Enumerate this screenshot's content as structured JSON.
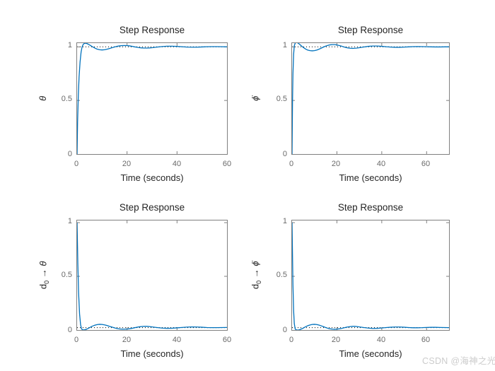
{
  "figure": {
    "background": "#ffffff"
  },
  "colors": {
    "curve": "#0072BD",
    "axis_box": "#808080",
    "tick_mark": "#808080",
    "tick_label": "#696969",
    "text": "#252525",
    "ref_line": "#000000",
    "watermark": "#cccccc"
  },
  "watermark": {
    "text": "CSDN @海神之光"
  },
  "chart_data": [
    {
      "type": "line",
      "title": "Step Response",
      "xlabel": "Time (seconds)",
      "ylabel": {
        "base": "",
        "sub": "",
        "arrow": "",
        "sym": "θ"
      },
      "xlim": [
        0,
        60
      ],
      "ylim": [
        0,
        1.035
      ],
      "xticks": [
        0,
        20,
        40,
        60
      ],
      "xtick_labels": [
        "0",
        "20",
        "40",
        "60"
      ],
      "yticks": [
        0,
        0.5,
        1
      ],
      "ytick_labels": [
        "0",
        "0.5",
        "1"
      ],
      "grid": false,
      "legend": null,
      "ref_line_y": 1,
      "series": [
        {
          "name": "theta step response",
          "color": "#0072BD",
          "x": [
            0,
            0.2,
            0.5,
            0.8,
            1.2,
            1.6,
            2.0,
            2.5,
            3,
            3.5,
            4,
            5,
            6,
            7,
            8,
            9,
            10,
            11,
            12,
            13,
            14,
            15,
            16,
            17,
            18,
            19,
            20,
            21,
            22,
            23,
            24,
            25,
            26,
            27,
            28,
            29,
            30,
            32,
            34,
            36,
            38,
            40,
            42,
            44,
            46,
            48,
            50,
            52,
            54,
            56,
            58,
            60
          ],
          "y": [
            0,
            0.3,
            0.55,
            0.72,
            0.86,
            0.95,
            1.0,
            1.025,
            1.033,
            1.034,
            1.03,
            1.018,
            1.003,
            0.99,
            0.979,
            0.973,
            0.971,
            0.973,
            0.978,
            0.985,
            0.992,
            0.999,
            1.005,
            1.009,
            1.012,
            1.013,
            1.012,
            1.009,
            1.005,
            1.0,
            0.996,
            0.992,
            0.99,
            0.989,
            0.989,
            0.99,
            0.992,
            0.998,
            1.003,
            1.006,
            1.006,
            1.004,
            1.001,
            0.998,
            0.997,
            0.997,
            0.999,
            1.001,
            1.002,
            1.002,
            1.001,
            1.0
          ]
        }
      ]
    },
    {
      "type": "line",
      "title": "Step Response",
      "xlabel": "Time (seconds)",
      "ylabel": {
        "base": "",
        "sub": "",
        "arrow": "",
        "sym": "ϕ̇"
      },
      "xlim": [
        0,
        70
      ],
      "ylim": [
        0,
        1.035
      ],
      "xticks": [
        0,
        20,
        40,
        60
      ],
      "xtick_labels": [
        "0",
        "20",
        "40",
        "60"
      ],
      "yticks": [
        0,
        0.5,
        1
      ],
      "ytick_labels": [
        "0",
        "0.5",
        "1"
      ],
      "grid": false,
      "legend": null,
      "ref_line_y": 1,
      "series": [
        {
          "name": "phidot step response",
          "color": "#0072BD",
          "x": [
            0,
            0.2,
            0.4,
            0.7,
            1.0,
            1.4,
            1.8,
            2.3,
            3,
            3.5,
            4,
            5,
            6,
            7,
            8,
            9,
            10,
            11,
            12,
            13,
            14,
            15,
            16,
            17,
            18,
            19,
            20,
            21,
            22,
            23,
            24,
            25,
            26,
            27,
            28,
            29,
            30,
            32,
            34,
            36,
            38,
            40,
            42,
            44,
            46,
            48,
            50,
            52,
            54,
            56,
            58,
            60,
            62,
            64,
            66,
            68,
            70
          ],
          "y": [
            0,
            0.48,
            0.75,
            0.93,
            1.01,
            1.035,
            1.042,
            1.04,
            1.03,
            1.022,
            1.012,
            0.995,
            0.98,
            0.97,
            0.965,
            0.963,
            0.965,
            0.97,
            0.978,
            0.988,
            0.998,
            1.007,
            1.014,
            1.019,
            1.021,
            1.021,
            1.018,
            1.013,
            1.007,
            1.0,
            0.994,
            0.99,
            0.987,
            0.986,
            0.987,
            0.989,
            0.992,
            0.999,
            1.005,
            1.008,
            1.008,
            1.005,
            1.001,
            0.998,
            0.996,
            0.996,
            0.998,
            1.0,
            1.002,
            1.003,
            1.002,
            1.001,
            1.0,
            0.999,
            0.999,
            1.0,
            1.0
          ]
        }
      ]
    },
    {
      "type": "line",
      "title": "Step Response",
      "xlabel": "Time (seconds)",
      "ylabel": {
        "base": "d",
        "sub": "0",
        "arrow": " → ",
        "sym": "θ"
      },
      "xlim": [
        0,
        60
      ],
      "ylim": [
        0,
        1.02
      ],
      "xticks": [
        0,
        20,
        40,
        60
      ],
      "xtick_labels": [
        "0",
        "20",
        "40",
        "60"
      ],
      "yticks": [
        0,
        0.5,
        1
      ],
      "ytick_labels": [
        "0",
        "0.5",
        "1"
      ],
      "grid": false,
      "legend": null,
      "ref_line_y": 0.022,
      "series": [
        {
          "name": "disturbance d0 to theta",
          "color": "#0072BD",
          "x": [
            0,
            0.3,
            0.6,
            1.0,
            1.4,
            1.8,
            2.2,
            2.6,
            3,
            3.5,
            4,
            5,
            6,
            7,
            8,
            9,
            10,
            11,
            12,
            13,
            14,
            15,
            16,
            17,
            18,
            19,
            20,
            21,
            22,
            23,
            24,
            25,
            26,
            27,
            28,
            29,
            30,
            32,
            34,
            36,
            38,
            40,
            42,
            44,
            46,
            48,
            50,
            52,
            54,
            56,
            58,
            60
          ],
          "y": [
            1.0,
            0.62,
            0.35,
            0.15,
            0.05,
            0.01,
            0.002,
            0.001,
            0.002,
            0.005,
            0.01,
            0.022,
            0.035,
            0.044,
            0.05,
            0.053,
            0.052,
            0.048,
            0.042,
            0.034,
            0.027,
            0.02,
            0.014,
            0.01,
            0.008,
            0.008,
            0.009,
            0.012,
            0.016,
            0.021,
            0.026,
            0.03,
            0.033,
            0.034,
            0.034,
            0.032,
            0.029,
            0.023,
            0.018,
            0.016,
            0.017,
            0.02,
            0.024,
            0.027,
            0.029,
            0.028,
            0.026,
            0.023,
            0.022,
            0.022,
            0.023,
            0.024
          ]
        }
      ]
    },
    {
      "type": "line",
      "title": "Step Response",
      "xlabel": "Time (seconds)",
      "ylabel": {
        "base": "d",
        "sub": "0",
        "arrow": " → ",
        "sym": "ϕ̇"
      },
      "xlim": [
        0,
        70
      ],
      "ylim": [
        0,
        1.02
      ],
      "xticks": [
        0,
        20,
        40,
        60
      ],
      "xtick_labels": [
        "0",
        "20",
        "40",
        "60"
      ],
      "yticks": [
        0,
        0.5,
        1
      ],
      "ytick_labels": [
        "0",
        "0.5",
        "1"
      ],
      "grid": false,
      "legend": null,
      "ref_line_y": 0.022,
      "series": [
        {
          "name": "disturbance d0 to phidot",
          "color": "#0072BD",
          "x": [
            0,
            0.2,
            0.4,
            0.7,
            1.0,
            1.4,
            1.8,
            2.3,
            3,
            3.5,
            4,
            5,
            6,
            7,
            8,
            9,
            10,
            11,
            12,
            13,
            14,
            15,
            16,
            17,
            18,
            19,
            20,
            21,
            22,
            23,
            24,
            25,
            26,
            27,
            28,
            29,
            30,
            32,
            34,
            36,
            38,
            40,
            42,
            44,
            46,
            48,
            50,
            52,
            54,
            56,
            58,
            60,
            62,
            64,
            66,
            68,
            70
          ],
          "y": [
            1.0,
            0.7,
            0.42,
            0.18,
            0.06,
            0.01,
            0.002,
            0.0,
            0.001,
            0.004,
            0.008,
            0.018,
            0.03,
            0.04,
            0.047,
            0.052,
            0.053,
            0.051,
            0.046,
            0.039,
            0.031,
            0.023,
            0.016,
            0.011,
            0.008,
            0.007,
            0.008,
            0.011,
            0.015,
            0.02,
            0.025,
            0.029,
            0.032,
            0.034,
            0.034,
            0.032,
            0.029,
            0.023,
            0.018,
            0.015,
            0.016,
            0.019,
            0.023,
            0.026,
            0.028,
            0.028,
            0.026,
            0.023,
            0.021,
            0.021,
            0.022,
            0.024,
            0.025,
            0.025,
            0.024,
            0.023,
            0.022
          ]
        }
      ]
    }
  ]
}
